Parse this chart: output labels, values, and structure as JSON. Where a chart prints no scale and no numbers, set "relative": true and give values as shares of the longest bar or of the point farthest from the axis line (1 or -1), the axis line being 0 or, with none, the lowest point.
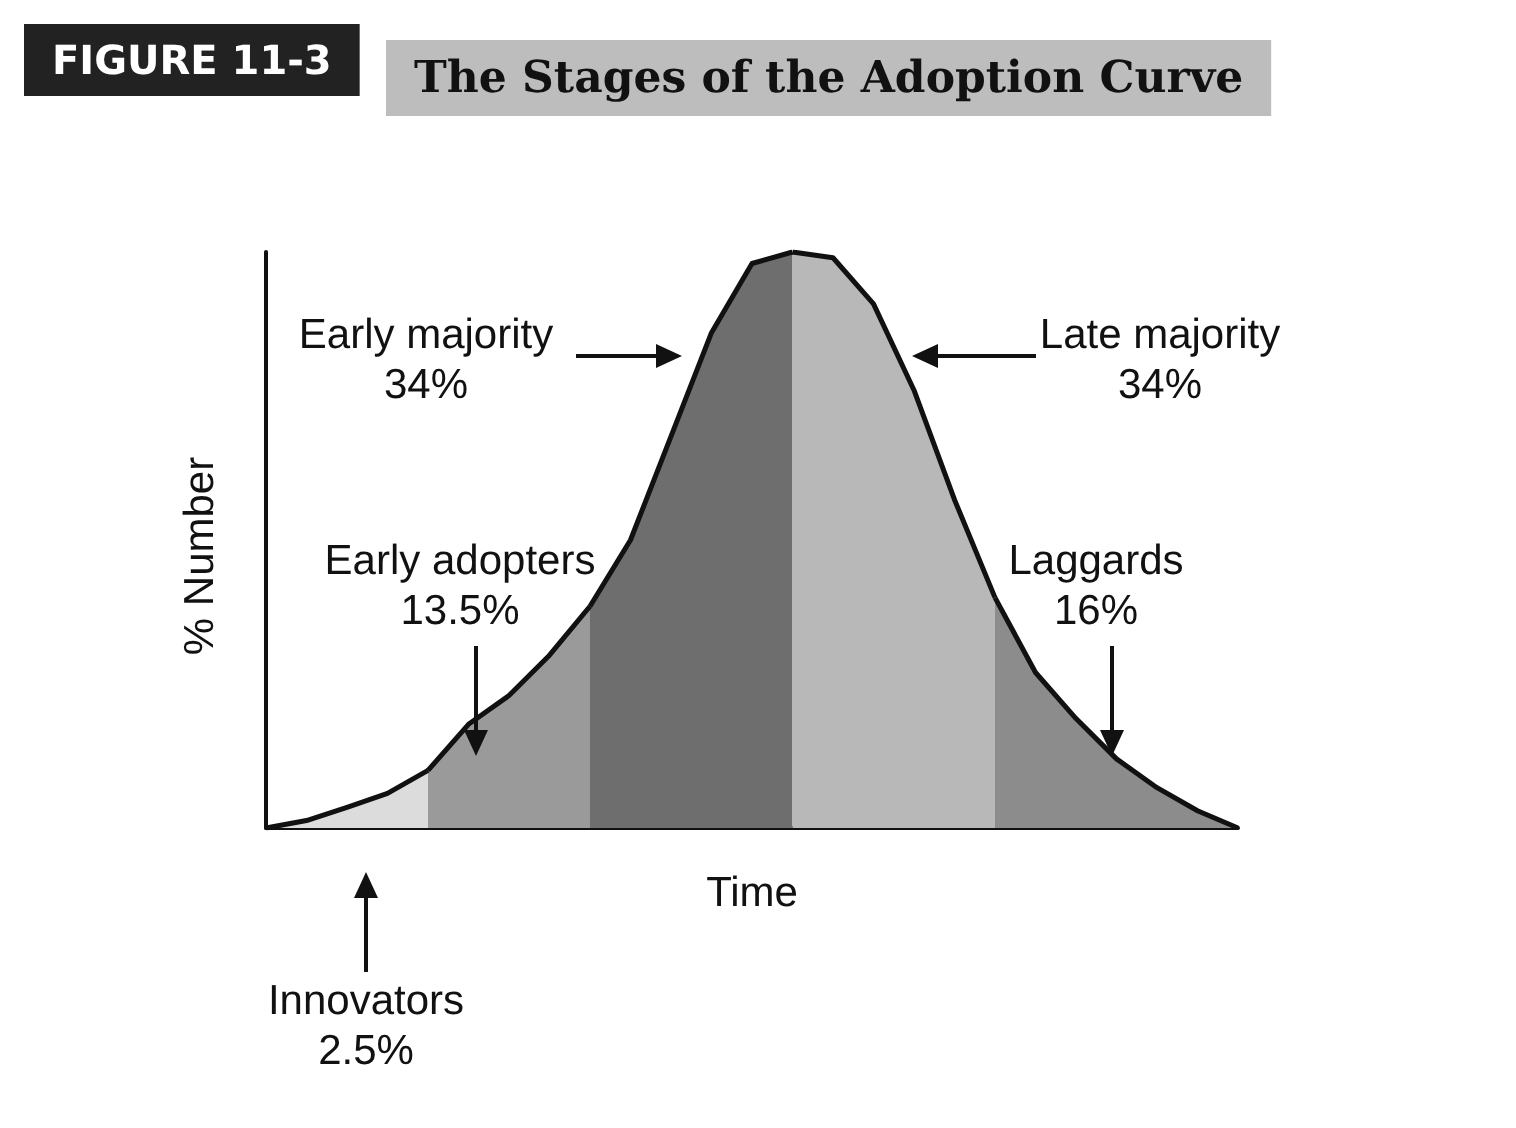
{
  "chart_data": {
    "type": "area",
    "relative": true,
    "title": "The Stages of the Adoption Curve",
    "subtitle": "FIGURE 11-3",
    "xlabel": "Time",
    "ylabel": "% Number",
    "categories": [
      null,
      null,
      null,
      null,
      null,
      null,
      null,
      null,
      null,
      null,
      null,
      null,
      null,
      null,
      null,
      null,
      null,
      null,
      null,
      null,
      null,
      null,
      null,
      null,
      null
    ],
    "series": [
      {
        "color": "#dcdcdc",
        "values": [
          0,
          0.013,
          0.036,
          0.06,
          0.1,
          null,
          null,
          null,
          null,
          null,
          null,
          null,
          null,
          null,
          null,
          null,
          null,
          null,
          null,
          null,
          null,
          null,
          null,
          null,
          null
        ]
      },
      {
        "color": "#9a9a9a",
        "values": [
          null,
          null,
          null,
          null,
          0.1,
          0.18,
          0.23,
          0.3,
          0.385,
          null,
          null,
          null,
          null,
          null,
          null,
          null,
          null,
          null,
          null,
          null,
          null,
          null,
          null,
          null,
          null
        ]
      },
      {
        "color": "#6e6e6e",
        "values": [
          null,
          null,
          null,
          null,
          null,
          null,
          null,
          null,
          0.385,
          0.5,
          0.68,
          0.86,
          0.98,
          1,
          null,
          null,
          null,
          null,
          null,
          null,
          null,
          null,
          null,
          null,
          null
        ]
      },
      {
        "color": "#b8b8b8",
        "values": [
          null,
          null,
          null,
          null,
          null,
          null,
          null,
          null,
          null,
          null,
          null,
          null,
          null,
          1,
          0.99,
          0.91,
          0.76,
          0.57,
          0.4,
          null,
          null,
          null,
          null,
          null,
          null
        ]
      },
      {
        "color": "#8c8c8c",
        "values": [
          null,
          null,
          null,
          null,
          null,
          null,
          null,
          null,
          null,
          null,
          null,
          null,
          null,
          null,
          null,
          null,
          null,
          null,
          0.4,
          0.27,
          0.19,
          0.12,
          0.07,
          0.03,
          0
        ]
      }
    ],
    "annotations": [
      "Early majority\n34%",
      "Late majority\n34%",
      "Early adopters\n13.5%",
      "Laggards\n16%",
      "Innovators\n2.5%"
    ],
    "grid": false
  }
}
